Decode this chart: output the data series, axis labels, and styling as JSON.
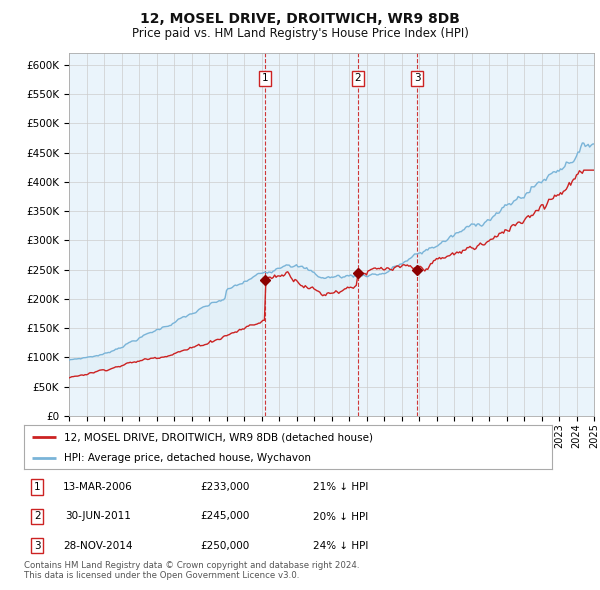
{
  "title": "12, MOSEL DRIVE, DROITWICH, WR9 8DB",
  "subtitle": "Price paid vs. HM Land Registry's House Price Index (HPI)",
  "ylabel_ticks": [
    "£0",
    "£50K",
    "£100K",
    "£150K",
    "£200K",
    "£250K",
    "£300K",
    "£350K",
    "£400K",
    "£450K",
    "£500K",
    "£550K",
    "£600K"
  ],
  "ylim": [
    0,
    620000
  ],
  "ytick_vals": [
    0,
    50000,
    100000,
    150000,
    200000,
    250000,
    300000,
    350000,
    400000,
    450000,
    500000,
    550000,
    600000
  ],
  "hpi_color": "#7ab4d8",
  "hpi_fill_color": "#ddeef7",
  "price_color": "#cc2222",
  "marker_color": "#8b0000",
  "vline_color": "#cc2222",
  "grid_color": "#cccccc",
  "background_color": "#ffffff",
  "chart_bg_color": "#eaf4fb",
  "sale_events": [
    {
      "label": "1",
      "date_x": 2006.2,
      "price": 233000,
      "date_str": "13-MAR-2006",
      "price_str": "£233,000",
      "hpi_rel": "21% ↓ HPI"
    },
    {
      "label": "2",
      "date_x": 2011.5,
      "price": 245000,
      "date_str": "30-JUN-2011",
      "price_str": "£245,000",
      "hpi_rel": "20% ↓ HPI"
    },
    {
      "label": "3",
      "date_x": 2014.9,
      "price": 250000,
      "date_str": "28-NOV-2014",
      "price_str": "£250,000",
      "hpi_rel": "24% ↓ HPI"
    }
  ],
  "legend_label_red": "12, MOSEL DRIVE, DROITWICH, WR9 8DB (detached house)",
  "legend_label_blue": "HPI: Average price, detached house, Wychavon",
  "footer": "Contains HM Land Registry data © Crown copyright and database right 2024.\nThis data is licensed under the Open Government Licence v3.0.",
  "xmin": 1995,
  "xmax": 2025
}
